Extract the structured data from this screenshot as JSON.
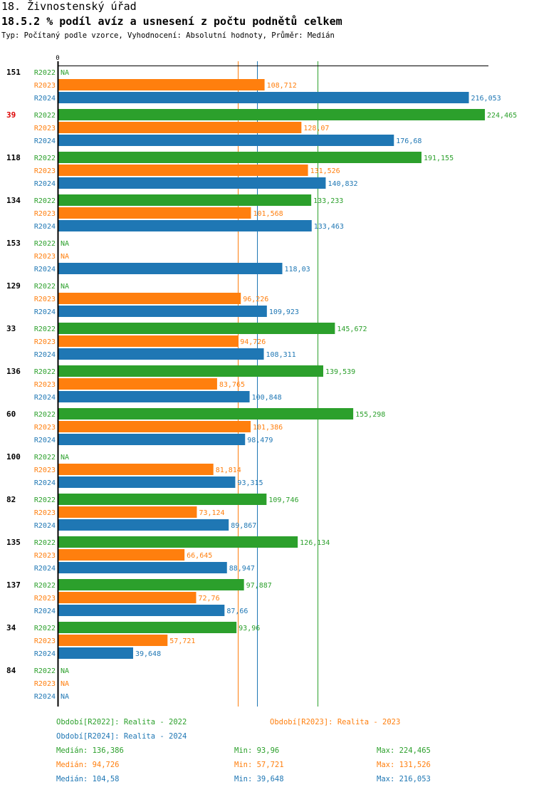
{
  "header": {
    "title": "18. Živnostenský úřad",
    "subtitle": "18.5.2 % podíl avíz a usnesení z počtu podnětů celkem",
    "meta": "Typ: Počítaný podle vzorce, Vyhodnocení: Absolutní hodnoty, Průměr: Medián"
  },
  "chart_data": {
    "type": "bar",
    "orientation": "horizontal",
    "title": "18.5.2 % podíl avíz a usnesení z počtu podnětů celkem",
    "xlabel": "",
    "ylabel": "",
    "x_tick_labels": [
      "0"
    ],
    "xlim": [
      0,
      226
    ],
    "grid": false,
    "na_label": "NA",
    "series_colors": {
      "R2022": "#2ca02c",
      "R2023": "#ff7f0e",
      "R2024": "#1f77b4"
    },
    "series": [
      {
        "name": "R2022",
        "color": "#2ca02c"
      },
      {
        "name": "R2023",
        "color": "#ff7f0e"
      },
      {
        "name": "R2024",
        "color": "#1f77b4"
      }
    ],
    "groups": [
      {
        "label": "151",
        "highlight": false,
        "values": {
          "R2022": null,
          "R2023": 108.712,
          "R2024": 216.053
        },
        "labels": {
          "R2022": "NA",
          "R2023": "108,712",
          "R2024": "216,053"
        }
      },
      {
        "label": "39",
        "highlight": true,
        "values": {
          "R2022": 224.465,
          "R2023": 128.07,
          "R2024": 176.68
        },
        "labels": {
          "R2022": "224,465",
          "R2023": "128,07",
          "R2024": "176,68"
        }
      },
      {
        "label": "118",
        "highlight": false,
        "values": {
          "R2022": 191.155,
          "R2023": 131.526,
          "R2024": 140.832
        },
        "labels": {
          "R2022": "191,155",
          "R2023": "131,526",
          "R2024": "140,832"
        }
      },
      {
        "label": "134",
        "highlight": false,
        "values": {
          "R2022": 133.233,
          "R2023": 101.568,
          "R2024": 133.463
        },
        "labels": {
          "R2022": "133,233",
          "R2023": "101,568",
          "R2024": "133,463"
        }
      },
      {
        "label": "153",
        "highlight": false,
        "values": {
          "R2022": null,
          "R2023": null,
          "R2024": 118.03
        },
        "labels": {
          "R2022": "NA",
          "R2023": "NA",
          "R2024": "118,03"
        }
      },
      {
        "label": "129",
        "highlight": false,
        "values": {
          "R2022": null,
          "R2023": 96.226,
          "R2024": 109.923
        },
        "labels": {
          "R2022": "NA",
          "R2023": "96,226",
          "R2024": "109,923"
        }
      },
      {
        "label": "33",
        "highlight": false,
        "values": {
          "R2022": 145.672,
          "R2023": 94.726,
          "R2024": 108.311
        },
        "labels": {
          "R2022": "145,672",
          "R2023": "94,726",
          "R2024": "108,311"
        }
      },
      {
        "label": "136",
        "highlight": false,
        "values": {
          "R2022": 139.539,
          "R2023": 83.765,
          "R2024": 100.848
        },
        "labels": {
          "R2022": "139,539",
          "R2023": "83,765",
          "R2024": "100,848"
        }
      },
      {
        "label": "60",
        "highlight": false,
        "values": {
          "R2022": 155.298,
          "R2023": 101.386,
          "R2024": 98.479
        },
        "labels": {
          "R2022": "155,298",
          "R2023": "101,386",
          "R2024": "98,479"
        }
      },
      {
        "label": "100",
        "highlight": false,
        "values": {
          "R2022": null,
          "R2023": 81.814,
          "R2024": 93.315
        },
        "labels": {
          "R2022": "NA",
          "R2023": "81,814",
          "R2024": "93,315"
        }
      },
      {
        "label": "82",
        "highlight": false,
        "values": {
          "R2022": 109.746,
          "R2023": 73.124,
          "R2024": 89.867
        },
        "labels": {
          "R2022": "109,746",
          "R2023": "73,124",
          "R2024": "89,867"
        }
      },
      {
        "label": "135",
        "highlight": false,
        "values": {
          "R2022": 126.134,
          "R2023": 66.645,
          "R2024": 88.947
        },
        "labels": {
          "R2022": "126,134",
          "R2023": "66,645",
          "R2024": "88,947"
        }
      },
      {
        "label": "137",
        "highlight": false,
        "values": {
          "R2022": 97.887,
          "R2023": 72.76,
          "R2024": 87.66
        },
        "labels": {
          "R2022": "97,887",
          "R2023": "72,76",
          "R2024": "87,66"
        }
      },
      {
        "label": "34",
        "highlight": false,
        "values": {
          "R2022": 93.96,
          "R2023": 57.721,
          "R2024": 39.648
        },
        "labels": {
          "R2022": "93,96",
          "R2023": "57,721",
          "R2024": "39,648"
        }
      },
      {
        "label": "84",
        "highlight": false,
        "values": {
          "R2022": null,
          "R2023": null,
          "R2024": null
        },
        "labels": {
          "R2022": "NA",
          "R2023": "NA",
          "R2024": "NA"
        }
      }
    ],
    "reference_lines": [
      {
        "series": "R2023",
        "type": "median",
        "value": 94.726,
        "color": "#ff7f0e"
      },
      {
        "series": "R2024",
        "type": "median",
        "value": 104.58,
        "color": "#1f77b4"
      },
      {
        "series": "R2022",
        "type": "median",
        "value": 136.386,
        "color": "#2ca02c"
      }
    ],
    "legend": {
      "placement": "bottom",
      "periods": [
        {
          "text": "Období[R2022]: Realita - 2022",
          "color": "#2ca02c"
        },
        {
          "text": "Období[R2023]: Realita - 2023",
          "color": "#ff7f0e"
        },
        {
          "text": "Období[R2024]: Realita - 2024",
          "color": "#1f77b4"
        }
      ],
      "stats": [
        {
          "median": "Medián: 136,386",
          "min": "Min: 93,96",
          "max": "Max: 224,465",
          "color": "#2ca02c"
        },
        {
          "median": "Medián: 94,726",
          "min": "Min: 57,721",
          "max": "Max: 131,526",
          "color": "#ff7f0e"
        },
        {
          "median": "Medián: 104,58",
          "min": "Min: 39,648",
          "max": "Max: 216,053",
          "color": "#1f77b4"
        }
      ]
    },
    "highlight_color": "#dd0000"
  }
}
